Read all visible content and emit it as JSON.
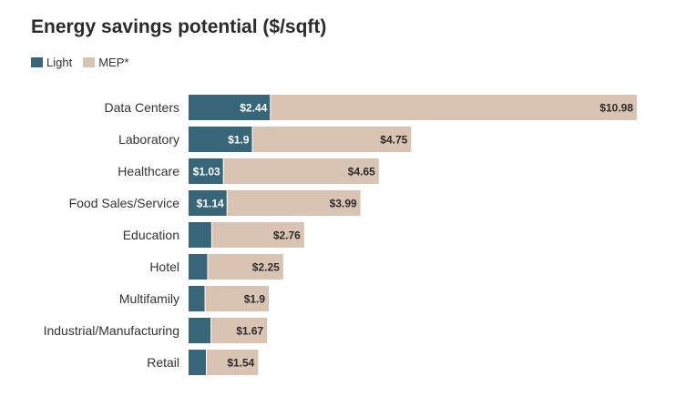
{
  "chart_data": {
    "type": "bar",
    "orientation": "horizontal",
    "stacked": true,
    "title": "Energy savings potential ($/sqft)",
    "categories": [
      "Data Centers",
      "Laboratory",
      "Healthcare",
      "Food Sales/Service",
      "Education",
      "Hotel",
      "Multifamily",
      "Industrial/Manufacturing",
      "Retail"
    ],
    "series": [
      {
        "name": "Light",
        "color": "#376678",
        "values": [
          2.44,
          1.9,
          1.03,
          1.14,
          0.68,
          0.56,
          0.48,
          0.66,
          0.52
        ],
        "labels": [
          "$2.44",
          "$1.9",
          "$1.03",
          "$1.14",
          "",
          "",
          "",
          "",
          ""
        ]
      },
      {
        "name": "MEP*",
        "color": "#d9c4b3",
        "values": [
          10.98,
          4.75,
          4.65,
          3.99,
          2.76,
          2.25,
          1.9,
          1.67,
          1.54
        ],
        "labels": [
          "$10.98",
          "$4.75",
          "$4.65",
          "$3.99",
          "$2.76",
          "$2.25",
          "$1.9",
          "$1.67",
          "$1.54"
        ]
      }
    ],
    "xlim": [
      0,
      13.42
    ],
    "grid": false,
    "legend_position": "top-left"
  }
}
